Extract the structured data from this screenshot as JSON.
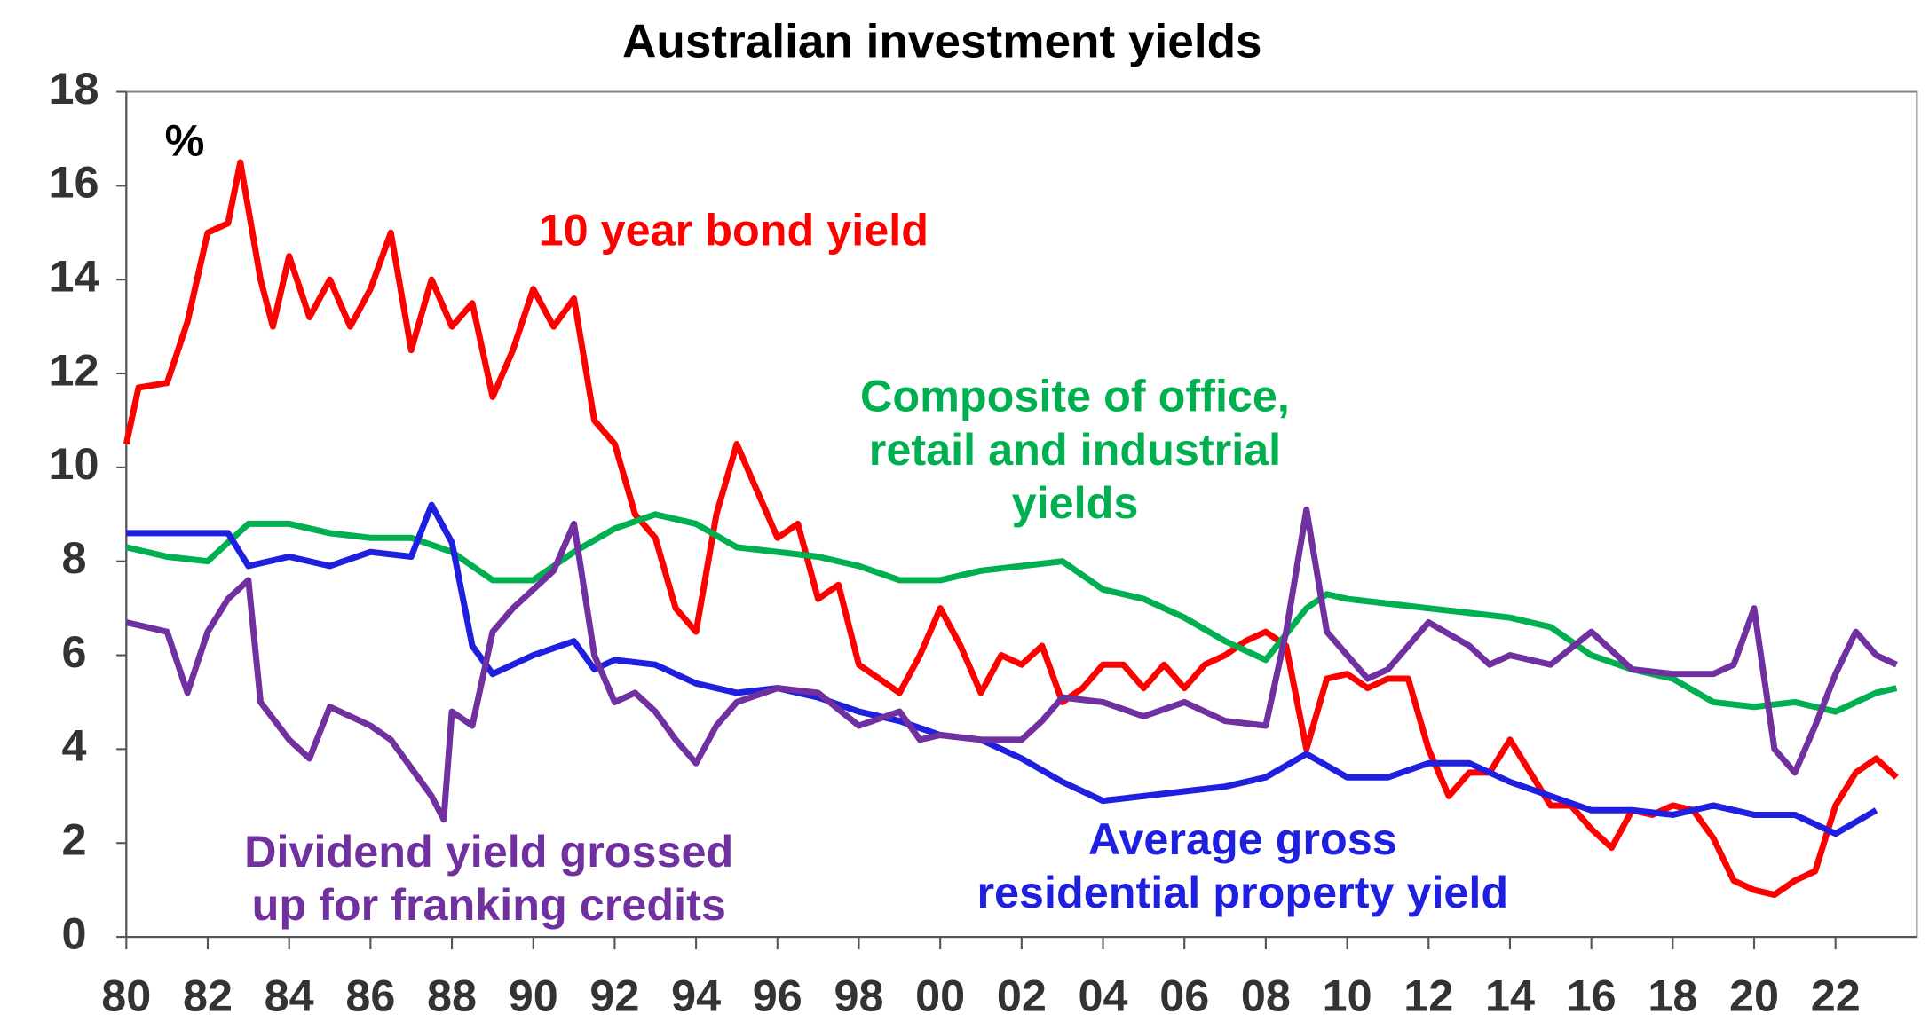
{
  "chart_data": {
    "type": "line",
    "title": "Australian investment yields",
    "y_unit_label": "%",
    "xlim": [
      1980,
      2024
    ],
    "ylim": [
      0,
      18
    ],
    "yticks": [
      0,
      2,
      4,
      6,
      8,
      10,
      12,
      14,
      16,
      18
    ],
    "xticks": [
      {
        "value": 1980,
        "label": "80"
      },
      {
        "value": 1982,
        "label": "82"
      },
      {
        "value": 1984,
        "label": "84"
      },
      {
        "value": 1986,
        "label": "86"
      },
      {
        "value": 1988,
        "label": "88"
      },
      {
        "value": 1990,
        "label": "90"
      },
      {
        "value": 1992,
        "label": "92"
      },
      {
        "value": 1994,
        "label": "94"
      },
      {
        "value": 1996,
        "label": "96"
      },
      {
        "value": 1998,
        "label": "98"
      },
      {
        "value": 2000,
        "label": "00"
      },
      {
        "value": 2002,
        "label": "02"
      },
      {
        "value": 2004,
        "label": "04"
      },
      {
        "value": 2006,
        "label": "06"
      },
      {
        "value": 2008,
        "label": "08"
      },
      {
        "value": 2010,
        "label": "10"
      },
      {
        "value": 2012,
        "label": "12"
      },
      {
        "value": 2014,
        "label": "14"
      },
      {
        "value": 2016,
        "label": "16"
      },
      {
        "value": 2018,
        "label": "18"
      },
      {
        "value": 2020,
        "label": "20"
      },
      {
        "value": 2022,
        "label": "22"
      }
    ],
    "series": [
      {
        "name": "10 year bond yield",
        "color": "#ff0000",
        "x": [
          1980,
          1980.3,
          1981,
          1981.5,
          1982,
          1982.5,
          1982.8,
          1983.3,
          1983.6,
          1984,
          1984.5,
          1985,
          1985.5,
          1986,
          1986.5,
          1987,
          1987.5,
          1988,
          1988.5,
          1989,
          1989.5,
          1990,
          1990.5,
          1991,
          1991.5,
          1992,
          1992.5,
          1993,
          1993.5,
          1994,
          1994.5,
          1995,
          1995.5,
          1996,
          1996.5,
          1997,
          1997.5,
          1998,
          1998.5,
          1999,
          1999.5,
          2000,
          2000.5,
          2001,
          2001.5,
          2002,
          2002.5,
          2003,
          2003.5,
          2004,
          2004.5,
          2005,
          2005.5,
          2006,
          2006.5,
          2007,
          2007.5,
          2008,
          2008.5,
          2009,
          2009.5,
          2010,
          2010.5,
          2011,
          2011.5,
          2012,
          2012.5,
          2013,
          2013.5,
          2014,
          2014.5,
          2015,
          2015.5,
          2016,
          2016.5,
          2017,
          2017.5,
          2018,
          2018.5,
          2019,
          2019.5,
          2020,
          2020.5,
          2021,
          2021.5,
          2022,
          2022.5,
          2023,
          2023.5
        ],
        "values": [
          10.5,
          11.7,
          11.8,
          13.1,
          15,
          15.2,
          16.5,
          14,
          13,
          14.5,
          13.2,
          14,
          13,
          13.8,
          15,
          12.5,
          14,
          13,
          13.5,
          11.5,
          12.5,
          13.8,
          13,
          13.6,
          11,
          10.5,
          9,
          8.5,
          7,
          6.5,
          9,
          10.5,
          9.5,
          8.5,
          8.8,
          7.2,
          7.5,
          5.8,
          5.5,
          5.2,
          6,
          7,
          6.2,
          5.2,
          6,
          5.8,
          6.2,
          5,
          5.3,
          5.8,
          5.8,
          5.3,
          5.8,
          5.3,
          5.8,
          6,
          6.3,
          6.5,
          6.2,
          4,
          5.5,
          5.6,
          5.3,
          5.5,
          5.5,
          4,
          3,
          3.5,
          3.5,
          4.2,
          3.5,
          2.8,
          2.8,
          2.3,
          1.9,
          2.7,
          2.6,
          2.8,
          2.7,
          2.1,
          1.2,
          1,
          0.9,
          1.2,
          1.4,
          2.8,
          3.5,
          3.8,
          3.4
        ]
      },
      {
        "name": "Composite of office, retail and industrial yields",
        "color": "#00b050",
        "x": [
          1980,
          1981,
          1982,
          1983,
          1984,
          1985,
          1986,
          1987,
          1988,
          1989,
          1990,
          1991,
          1992,
          1993,
          1994,
          1995,
          1996,
          1997,
          1998,
          1999,
          2000,
          2001,
          2002,
          2003,
          2004,
          2005,
          2006,
          2007,
          2008,
          2009,
          2009.5,
          2010,
          2011,
          2012,
          2013,
          2014,
          2015,
          2016,
          2017,
          2018,
          2019,
          2020,
          2021,
          2022,
          2023,
          2023.5
        ],
        "values": [
          8.3,
          8.1,
          8.0,
          8.8,
          8.8,
          8.6,
          8.5,
          8.5,
          8.2,
          7.6,
          7.6,
          8.2,
          8.7,
          9.0,
          8.8,
          8.3,
          8.2,
          8.1,
          7.9,
          7.6,
          7.6,
          7.8,
          7.9,
          8.0,
          7.4,
          7.2,
          6.8,
          6.3,
          5.9,
          7.0,
          7.3,
          7.2,
          7.1,
          7.0,
          6.9,
          6.8,
          6.6,
          6.0,
          5.7,
          5.5,
          5.0,
          4.9,
          5.0,
          4.8,
          5.2,
          5.3
        ]
      },
      {
        "name": "Average gross residential property yield",
        "color": "#1f1fe0",
        "x": [
          1980,
          1982,
          1982.5,
          1983,
          1984,
          1985,
          1986,
          1987,
          1987.5,
          1988,
          1988.5,
          1989,
          1990,
          1991,
          1991.5,
          1992,
          1993,
          1994,
          1995,
          1996,
          1997,
          1998,
          1999,
          2000,
          2001,
          2002,
          2003,
          2004,
          2005,
          2006,
          2007,
          2008,
          2009,
          2010,
          2011,
          2012,
          2013,
          2014,
          2015,
          2016,
          2017,
          2018,
          2019,
          2020,
          2021,
          2022,
          2023
        ],
        "values": [
          8.6,
          8.6,
          8.6,
          7.9,
          8.1,
          7.9,
          8.2,
          8.1,
          9.2,
          8.4,
          6.2,
          5.6,
          6.0,
          6.3,
          5.7,
          5.9,
          5.8,
          5.4,
          5.2,
          5.3,
          5.1,
          4.8,
          4.6,
          4.3,
          4.2,
          3.8,
          3.3,
          2.9,
          3.0,
          3.1,
          3.2,
          3.4,
          3.9,
          3.4,
          3.4,
          3.7,
          3.7,
          3.3,
          3.0,
          2.7,
          2.7,
          2.6,
          2.8,
          2.6,
          2.6,
          2.2,
          2.7
        ]
      },
      {
        "name": "Dividend yield grossed up for franking credits",
        "color": "#7030a0",
        "x": [
          1980,
          1981,
          1981.5,
          1982,
          1982.5,
          1983,
          1983.3,
          1984,
          1984.5,
          1985,
          1986,
          1986.5,
          1987,
          1987.5,
          1987.8,
          1988,
          1988.5,
          1989,
          1989.5,
          1990,
          1990.5,
          1991,
          1991.5,
          1992,
          1992.5,
          1993,
          1993.5,
          1994,
          1994.5,
          1995,
          1996,
          1997,
          1998,
          1999,
          1999.5,
          2000,
          2001,
          2002,
          2002.5,
          2003,
          2004,
          2005,
          2006,
          2007,
          2008,
          2008.5,
          2009,
          2009.5,
          2010,
          2010.5,
          2011,
          2012,
          2013,
          2013.5,
          2014,
          2015,
          2016,
          2017,
          2018,
          2019,
          2019.5,
          2020,
          2020.5,
          2021,
          2021.5,
          2022,
          2022.5,
          2023,
          2023.5
        ],
        "values": [
          6.7,
          6.5,
          5.2,
          6.5,
          7.2,
          7.6,
          5.0,
          4.2,
          3.8,
          4.9,
          4.5,
          4.2,
          3.6,
          3.0,
          2.5,
          4.8,
          4.5,
          6.5,
          7.0,
          7.4,
          7.8,
          8.8,
          6.0,
          5.0,
          5.2,
          4.8,
          4.2,
          3.7,
          4.5,
          5.0,
          5.3,
          5.2,
          4.5,
          4.8,
          4.2,
          4.3,
          4.2,
          4.2,
          4.6,
          5.1,
          5.0,
          4.7,
          5.0,
          4.6,
          4.5,
          6.5,
          9.1,
          6.5,
          6.0,
          5.5,
          5.7,
          6.7,
          6.2,
          5.8,
          6.0,
          5.8,
          6.5,
          5.7,
          5.6,
          5.6,
          5.8,
          7.0,
          4.0,
          3.5,
          4.5,
          5.6,
          6.5,
          6.0,
          5.8
        ]
      }
    ],
    "annotations": [
      {
        "lines": [
          "10 year bond yield"
        ],
        "color": "#ff0000"
      },
      {
        "lines": [
          "Composite of office,",
          "retail and industrial",
          "yields"
        ],
        "color": "#00b050"
      },
      {
        "lines": [
          "Dividend yield grossed",
          "up for franking credits"
        ],
        "color": "#7030a0"
      },
      {
        "lines": [
          "Average gross",
          "residential property yield"
        ],
        "color": "#1f1fe0"
      }
    ]
  }
}
